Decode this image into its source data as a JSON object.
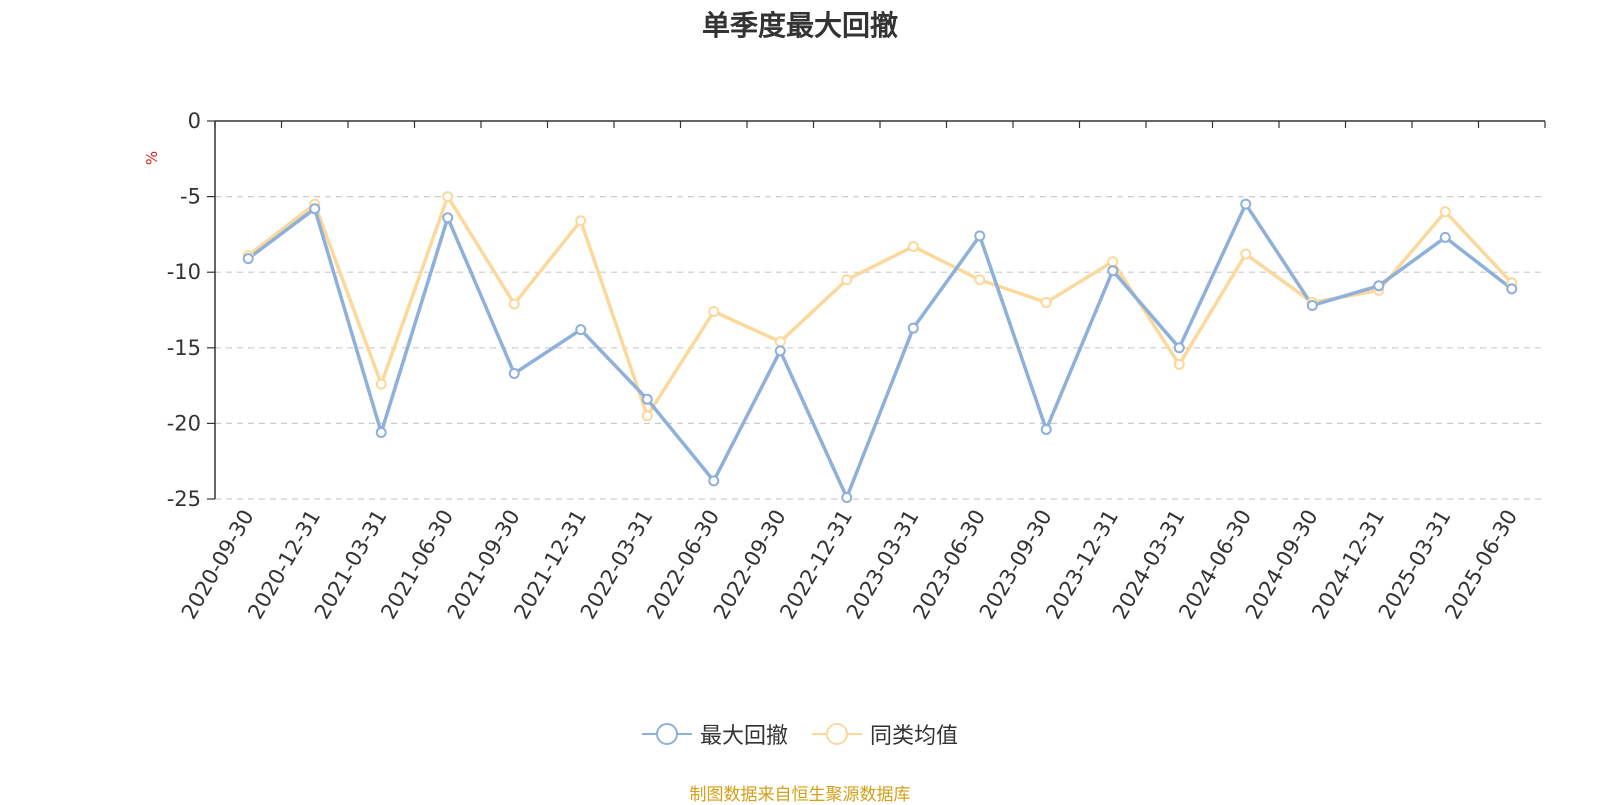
{
  "chart_data": {
    "type": "line",
    "title": "单季度最大回撤",
    "ylabel": "%",
    "ylim": [
      -25,
      0
    ],
    "yticks": [
      0,
      -5,
      -10,
      -15,
      -20,
      -25
    ],
    "grid": true,
    "legend_position": "bottom",
    "categories": [
      "2020-09-30",
      "2020-12-31",
      "2021-03-31",
      "2021-06-30",
      "2021-09-30",
      "2021-12-31",
      "2022-03-31",
      "2022-06-30",
      "2022-09-30",
      "2022-12-31",
      "2023-03-31",
      "2023-06-30",
      "2023-09-30",
      "2023-12-31",
      "2024-03-31",
      "2024-06-30",
      "2024-09-30",
      "2024-12-31",
      "2025-03-31",
      "2025-06-30"
    ],
    "series": [
      {
        "name": "最大回撤",
        "color": "#8eb0db",
        "values": [
          -9.1,
          -5.8,
          -20.6,
          -6.4,
          -16.7,
          -13.8,
          -18.4,
          -23.8,
          -15.2,
          -24.9,
          -13.7,
          -7.6,
          -20.4,
          -9.9,
          -15.0,
          -5.5,
          -12.2,
          -10.9,
          -7.7,
          -11.1
        ]
      },
      {
        "name": "同类均值",
        "color": "#fbd89b",
        "values": [
          -8.9,
          -5.5,
          -17.4,
          -5.0,
          -12.1,
          -6.6,
          -19.5,
          -12.6,
          -14.6,
          -10.5,
          -8.3,
          -10.5,
          -12.0,
          -9.3,
          -16.1,
          -8.8,
          -12.0,
          -11.2,
          -6.0,
          -10.7
        ]
      }
    ]
  },
  "source_note": "制图数据来自恒生聚源数据库"
}
